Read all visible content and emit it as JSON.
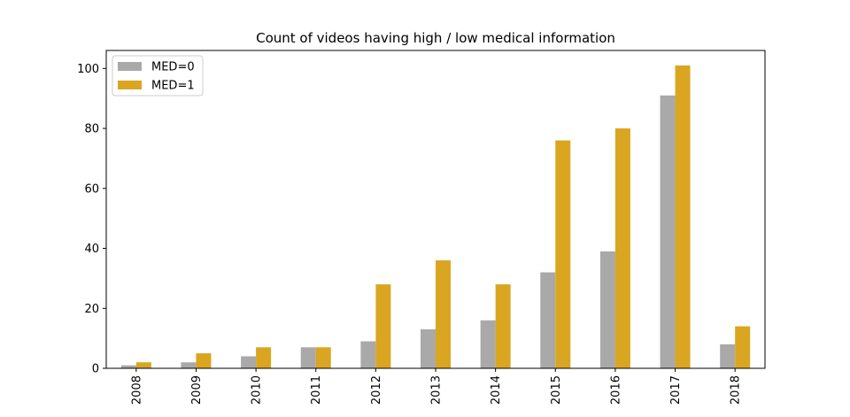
{
  "chart_data": {
    "type": "bar",
    "title": "Count of videos having high / low medical information",
    "xlabel": "",
    "ylabel": "",
    "categories": [
      "2008",
      "2009",
      "2010",
      "2011",
      "2012",
      "2013",
      "2014",
      "2015",
      "2016",
      "2017",
      "2018"
    ],
    "series": [
      {
        "name": "MED=0",
        "color": "#a9a9a9",
        "values": [
          1,
          2,
          4,
          7,
          9,
          13,
          16,
          32,
          39,
          91,
          8
        ]
      },
      {
        "name": "MED=1",
        "color": "#daa520",
        "values": [
          2,
          5,
          7,
          7,
          28,
          36,
          28,
          76,
          80,
          101,
          14
        ]
      }
    ],
    "ylim": [
      0,
      106
    ],
    "yticks": [
      0,
      20,
      40,
      60,
      80,
      100
    ],
    "grid": false,
    "legend_position": "top-left",
    "x_tick_rotation": "vertical"
  }
}
